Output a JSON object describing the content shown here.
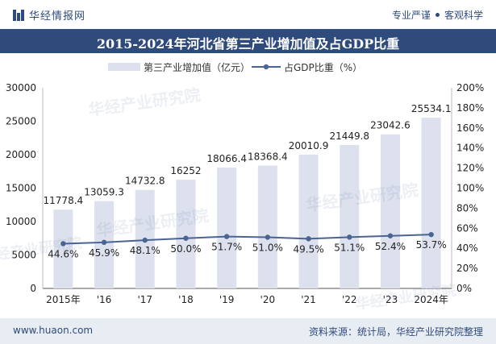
{
  "header": {
    "brand_name": "华经情报网",
    "slogan_left": "专业严谨",
    "slogan_right": "客观科学"
  },
  "title": "2015-2024年河北省第三产业增加值及占GDP比重",
  "footer": {
    "url": "www.huaon.com",
    "source": "资料来源：统计局，华经产业研究院整理"
  },
  "watermark": {
    "text": "华经产业研究院",
    "url": "www.huaon.com"
  },
  "colors": {
    "brand": "#2f4b7c",
    "bar": "#dde1ee",
    "line": "#4a6593"
  },
  "chart_data": {
    "type": "bar",
    "categories": [
      "2015年",
      "'16",
      "'17",
      "'18",
      "'19",
      "'20",
      "'21",
      "'22",
      "'23",
      "2024年"
    ],
    "series": [
      {
        "name": "第三产业增加值（亿元）",
        "type": "bar",
        "axis": "left",
        "values": [
          11778.4,
          13059.3,
          14732.8,
          16252,
          18066.4,
          18368.4,
          20010.9,
          21449.8,
          23042.6,
          25534.1
        ],
        "labels": [
          "11778.4",
          "13059.3",
          "14732.8",
          "16252",
          "18066.4",
          "18368.4",
          "20010.9",
          "21449.8",
          "23042.6",
          "25534.1"
        ]
      },
      {
        "name": "占GDP比重（%）",
        "type": "line",
        "axis": "right",
        "values": [
          44.6,
          45.9,
          48.1,
          50.0,
          51.7,
          51.0,
          49.5,
          51.1,
          52.4,
          53.7
        ],
        "labels": [
          "44.6%",
          "45.9%",
          "48.1%",
          "50.0%",
          "51.7%",
          "51.0%",
          "49.5%",
          "51.1%",
          "52.4%",
          "53.7%"
        ]
      }
    ],
    "y_left": {
      "lim": [
        0,
        30000
      ],
      "ticks": [
        "0",
        "5000",
        "10000",
        "15000",
        "20000",
        "25000",
        "30000"
      ]
    },
    "y_right": {
      "lim": [
        0,
        200
      ],
      "ticks": [
        "0%",
        "20%",
        "40%",
        "60%",
        "80%",
        "100%",
        "120%",
        "140%",
        "160%",
        "180%",
        "200%"
      ]
    },
    "legend": "top-center",
    "grid": false
  }
}
